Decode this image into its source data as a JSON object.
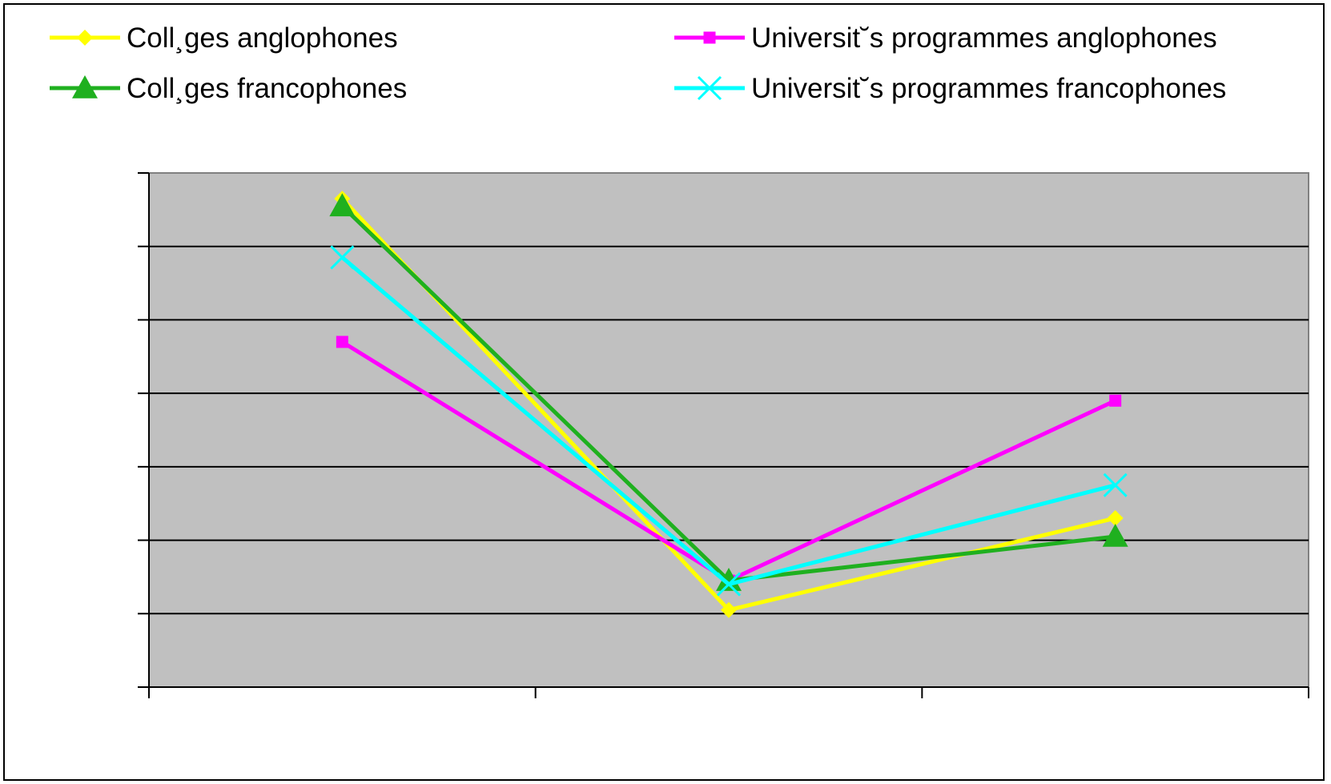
{
  "chart_data": {
    "type": "line",
    "title": "",
    "xlabel": "",
    "ylabel": "",
    "categories": [
      "",
      "",
      ""
    ],
    "ylim": [
      0,
      7
    ],
    "y_ticks": [
      0,
      1,
      2,
      3,
      4,
      5,
      6,
      7
    ],
    "grid": true,
    "legend_position": "top",
    "background_color": "#c0c0c0",
    "series": [
      {
        "name": "Coll¸ges anglophones",
        "color": "#ffff00",
        "marker": "diamond",
        "values": [
          6.65,
          1.05,
          2.3
        ]
      },
      {
        "name": "Universit˘s programmes anglophones",
        "color": "#ff00ff",
        "marker": "square",
        "values": [
          4.7,
          1.45,
          3.9
        ]
      },
      {
        "name": "Coll¸ges francophones",
        "color": "#1fb01f",
        "marker": "triangle",
        "values": [
          6.55,
          1.45,
          2.05
        ]
      },
      {
        "name": "Universit˘s programmes francophones",
        "color": "#00ffff",
        "marker": "x",
        "values": [
          5.85,
          1.4,
          2.75
        ]
      }
    ]
  }
}
